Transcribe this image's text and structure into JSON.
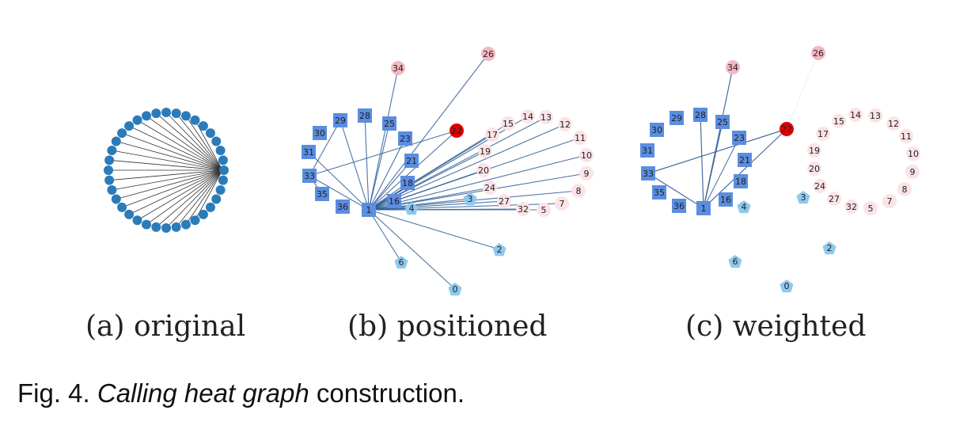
{
  "panels": {
    "a": {
      "label": "(a) original"
    },
    "b": {
      "label": "(b) positioned"
    },
    "c": {
      "label": "(c) weighted"
    }
  },
  "caption": {
    "prefix": "Fig. 4.",
    "italic": "Calling heat graph",
    "suffix": "construction."
  },
  "colors": {
    "circle_node": "#2b7bb9",
    "square_node": "#5b8de0",
    "pentagon_node": "#8ec9ee",
    "pink_node": "#f4b8c2",
    "light_pink_node": "#fbe3e6",
    "red_node": "#e00000",
    "edge": "#2f5d95"
  },
  "graph_b": {
    "nodes": [
      {
        "id": "34",
        "shape": "pink"
      },
      {
        "id": "26",
        "shape": "pink"
      },
      {
        "id": "22",
        "shape": "red"
      },
      {
        "id": "29",
        "shape": "square"
      },
      {
        "id": "28",
        "shape": "square"
      },
      {
        "id": "25",
        "shape": "square"
      },
      {
        "id": "30",
        "shape": "square"
      },
      {
        "id": "23",
        "shape": "square"
      },
      {
        "id": "31",
        "shape": "square"
      },
      {
        "id": "21",
        "shape": "square"
      },
      {
        "id": "33",
        "shape": "square"
      },
      {
        "id": "18",
        "shape": "square"
      },
      {
        "id": "35",
        "shape": "square"
      },
      {
        "id": "16",
        "shape": "square"
      },
      {
        "id": "36",
        "shape": "square"
      },
      {
        "id": "1",
        "shape": "square"
      },
      {
        "id": "4",
        "shape": "pentagon"
      },
      {
        "id": "3",
        "shape": "pentagon"
      },
      {
        "id": "2",
        "shape": "pentagon"
      },
      {
        "id": "6",
        "shape": "pentagon"
      },
      {
        "id": "0",
        "shape": "pentagon"
      },
      {
        "id": "15",
        "shape": "lpink"
      },
      {
        "id": "14",
        "shape": "lpink"
      },
      {
        "id": "13",
        "shape": "lpink"
      },
      {
        "id": "12",
        "shape": "lpink"
      },
      {
        "id": "17",
        "shape": "lpink"
      },
      {
        "id": "11",
        "shape": "lpink"
      },
      {
        "id": "19",
        "shape": "lpink"
      },
      {
        "id": "10",
        "shape": "lpink"
      },
      {
        "id": "20",
        "shape": "lpink"
      },
      {
        "id": "9",
        "shape": "lpink"
      },
      {
        "id": "24",
        "shape": "lpink"
      },
      {
        "id": "8",
        "shape": "lpink"
      },
      {
        "id": "27",
        "shape": "lpink"
      },
      {
        "id": "7",
        "shape": "lpink"
      },
      {
        "id": "32",
        "shape": "lpink"
      },
      {
        "id": "5",
        "shape": "lpink"
      }
    ]
  },
  "graph_c": {
    "nodes": [
      {
        "id": "34",
        "shape": "pink"
      },
      {
        "id": "26",
        "shape": "pink"
      },
      {
        "id": "22",
        "shape": "red"
      },
      {
        "id": "29",
        "shape": "square"
      },
      {
        "id": "28",
        "shape": "square"
      },
      {
        "id": "25",
        "shape": "square"
      },
      {
        "id": "30",
        "shape": "square"
      },
      {
        "id": "23",
        "shape": "square"
      },
      {
        "id": "31",
        "shape": "square"
      },
      {
        "id": "21",
        "shape": "square"
      },
      {
        "id": "33",
        "shape": "square"
      },
      {
        "id": "18",
        "shape": "square"
      },
      {
        "id": "35",
        "shape": "square"
      },
      {
        "id": "16",
        "shape": "square"
      },
      {
        "id": "36",
        "shape": "square"
      },
      {
        "id": "1",
        "shape": "square"
      },
      {
        "id": "4",
        "shape": "pentagon"
      },
      {
        "id": "3",
        "shape": "pentagon"
      },
      {
        "id": "2",
        "shape": "pentagon"
      },
      {
        "id": "6",
        "shape": "pentagon"
      },
      {
        "id": "0",
        "shape": "pentagon"
      },
      {
        "id": "15",
        "shape": "lpink"
      },
      {
        "id": "14",
        "shape": "lpink"
      },
      {
        "id": "13",
        "shape": "lpink"
      },
      {
        "id": "12",
        "shape": "lpink"
      },
      {
        "id": "17",
        "shape": "lpink"
      },
      {
        "id": "11",
        "shape": "lpink"
      },
      {
        "id": "19",
        "shape": "lpink"
      },
      {
        "id": "10",
        "shape": "lpink"
      },
      {
        "id": "20",
        "shape": "lpink"
      },
      {
        "id": "9",
        "shape": "lpink"
      },
      {
        "id": "24",
        "shape": "lpink"
      },
      {
        "id": "8",
        "shape": "lpink"
      },
      {
        "id": "27",
        "shape": "lpink"
      },
      {
        "id": "7",
        "shape": "lpink"
      },
      {
        "id": "32",
        "shape": "lpink"
      },
      {
        "id": "5",
        "shape": "lpink"
      }
    ]
  }
}
